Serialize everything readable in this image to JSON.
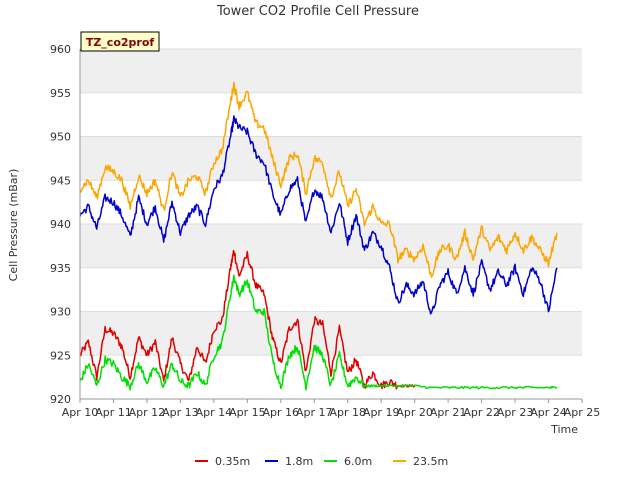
{
  "chart_data": {
    "type": "line",
    "title": "Tower CO2 Profile Cell Pressure",
    "xlabel": "Time",
    "ylabel": "Cell Pressure (mBar)",
    "badge": "TZ_co2prof",
    "xlim": [
      10,
      25
    ],
    "ylim": [
      920,
      960
    ],
    "x_ticks": [
      {
        "value": 10,
        "label": "Apr 10"
      },
      {
        "value": 11,
        "label": "Apr 11"
      },
      {
        "value": 12,
        "label": "Apr 12"
      },
      {
        "value": 13,
        "label": "Apr 13"
      },
      {
        "value": 14,
        "label": "Apr 14"
      },
      {
        "value": 15,
        "label": "Apr 15"
      },
      {
        "value": 16,
        "label": "Apr 16"
      },
      {
        "value": 17,
        "label": "Apr 17"
      },
      {
        "value": 18,
        "label": "Apr 18"
      },
      {
        "value": 19,
        "label": "Apr 19"
      },
      {
        "value": 20,
        "label": "Apr 20"
      },
      {
        "value": 21,
        "label": "Apr 21"
      },
      {
        "value": 22,
        "label": "Apr 22"
      },
      {
        "value": 23,
        "label": "Apr 23"
      },
      {
        "value": 24,
        "label": "Apr 24"
      },
      {
        "value": 25,
        "label": "Apr 25"
      }
    ],
    "y_ticks": [
      {
        "value": 920,
        "label": "920"
      },
      {
        "value": 925,
        "label": "925"
      },
      {
        "value": 930,
        "label": "930"
      },
      {
        "value": 935,
        "label": "935"
      },
      {
        "value": 940,
        "label": "940"
      },
      {
        "value": 945,
        "label": "945"
      },
      {
        "value": 950,
        "label": "950"
      },
      {
        "value": 955,
        "label": "955"
      },
      {
        "value": 960,
        "label": "960"
      }
    ],
    "grid": true,
    "legend_position": "bottom",
    "series": [
      {
        "name": "0.35m",
        "color": "#e00000",
        "x": [
          10.0,
          10.25,
          10.5,
          10.75,
          11.0,
          11.25,
          11.5,
          11.75,
          12.0,
          12.25,
          12.5,
          12.75,
          13.0,
          13.25,
          13.5,
          13.75,
          14.0,
          14.25,
          14.5,
          14.6,
          14.75,
          15.0,
          15.25,
          15.5,
          15.75,
          16.0,
          16.25,
          16.5,
          16.75,
          17.0,
          17.25,
          17.5,
          17.75,
          18.0,
          18.25,
          18.5,
          18.75,
          19.0,
          19.25,
          19.5,
          19.75,
          20.0
        ],
        "y": [
          925,
          926.5,
          922.5,
          928,
          927.5,
          926,
          922.5,
          927,
          925,
          926.5,
          922,
          927,
          924,
          922,
          926,
          924,
          928,
          929,
          935,
          937,
          934,
          936.5,
          933,
          932,
          927,
          924,
          928,
          929,
          923,
          929,
          928.5,
          923,
          928,
          923,
          924.5,
          921.5,
          923,
          921.5,
          922,
          921.5,
          921.5,
          921.5
        ]
      },
      {
        "name": "1.8m",
        "color": "#0000cc",
        "x": [
          10.0,
          10.25,
          10.5,
          10.75,
          11.0,
          11.25,
          11.5,
          11.75,
          12.0,
          12.25,
          12.5,
          12.75,
          13.0,
          13.25,
          13.5,
          13.75,
          14.0,
          14.25,
          14.5,
          14.6,
          14.75,
          15.0,
          15.25,
          15.5,
          15.75,
          16.0,
          16.25,
          16.5,
          16.75,
          17.0,
          17.25,
          17.5,
          17.75,
          18.0,
          18.25,
          18.5,
          18.75,
          19.0,
          19.25,
          19.5,
          19.75,
          20.0,
          20.25,
          20.5,
          20.75,
          21.0,
          21.25,
          21.5,
          21.75,
          22.0,
          22.25,
          22.5,
          22.75,
          23.0,
          23.25,
          23.5,
          23.75,
          24.0,
          24.25
        ],
        "y": [
          941,
          942,
          939.5,
          943,
          942.5,
          941,
          938.5,
          943,
          940,
          942,
          938,
          942.5,
          939,
          941,
          942,
          940,
          944,
          945.5,
          950,
          952,
          951,
          950.5,
          948,
          947,
          943.5,
          941,
          944,
          945,
          940,
          944,
          943,
          939,
          942.5,
          938,
          941,
          937,
          939,
          937.5,
          935,
          931,
          933,
          932,
          933.5,
          929.5,
          933,
          934.5,
          932,
          935,
          932,
          935.5,
          932.5,
          934.5,
          933,
          935,
          932,
          935,
          933.5,
          930,
          935
        ]
      },
      {
        "name": "6.0m",
        "color": "#00e000",
        "x": [
          10.0,
          10.25,
          10.5,
          10.75,
          11.0,
          11.25,
          11.5,
          11.75,
          12.0,
          12.25,
          12.5,
          12.75,
          13.0,
          13.25,
          13.5,
          13.75,
          14.0,
          14.25,
          14.5,
          14.6,
          14.75,
          15.0,
          15.25,
          15.5,
          15.75,
          16.0,
          16.25,
          16.5,
          16.75,
          17.0,
          17.25,
          17.5,
          17.75,
          18.0,
          18.25,
          18.5,
          18.75,
          19.0,
          19.5,
          20.0,
          20.5,
          21.0,
          21.5,
          22.0,
          22.5,
          23.0,
          23.5,
          24.0,
          24.25
        ],
        "y": [
          922,
          924,
          921.5,
          924.5,
          924,
          922.5,
          921.5,
          924,
          922,
          923.5,
          921.5,
          924,
          922,
          921.5,
          923,
          921.5,
          925,
          926.5,
          932,
          934,
          932,
          933.5,
          930,
          930,
          924.5,
          921.5,
          925,
          926,
          921.5,
          926,
          925,
          921.5,
          925,
          921.5,
          922.5,
          921.5,
          921.5,
          921.5,
          921.5,
          921.5,
          921.3,
          921.3,
          921.3,
          921.3,
          921.3,
          921.3,
          921.3,
          921.3,
          921.3
        ]
      },
      {
        "name": "23.5m",
        "color": "#ffa500",
        "x": [
          10.0,
          10.25,
          10.5,
          10.75,
          11.0,
          11.25,
          11.5,
          11.75,
          12.0,
          12.25,
          12.5,
          12.75,
          13.0,
          13.25,
          13.5,
          13.75,
          14.0,
          14.25,
          14.5,
          14.6,
          14.75,
          15.0,
          15.25,
          15.5,
          15.75,
          16.0,
          16.25,
          16.5,
          16.75,
          17.0,
          17.25,
          17.5,
          17.75,
          18.0,
          18.25,
          18.5,
          18.75,
          19.0,
          19.25,
          19.5,
          19.75,
          20.0,
          20.25,
          20.5,
          20.75,
          21.0,
          21.25,
          21.5,
          21.75,
          22.0,
          22.25,
          22.5,
          22.75,
          23.0,
          23.25,
          23.5,
          23.75,
          24.0,
          24.25
        ],
        "y": [
          944,
          945,
          943,
          946.5,
          946,
          945,
          942,
          945.5,
          943.5,
          945,
          941.5,
          946,
          943,
          945,
          945.5,
          943.5,
          947,
          948.5,
          954,
          956,
          953.5,
          955,
          951.5,
          951,
          947.5,
          944.5,
          947.5,
          948,
          943.5,
          947.5,
          947,
          943,
          946,
          942,
          944,
          940,
          942,
          940,
          940,
          936,
          937,
          936,
          937.5,
          934,
          937,
          937.5,
          936,
          939,
          936,
          939.5,
          937,
          938.5,
          937,
          939,
          937,
          938.5,
          937,
          935.5,
          939
        ]
      }
    ]
  }
}
